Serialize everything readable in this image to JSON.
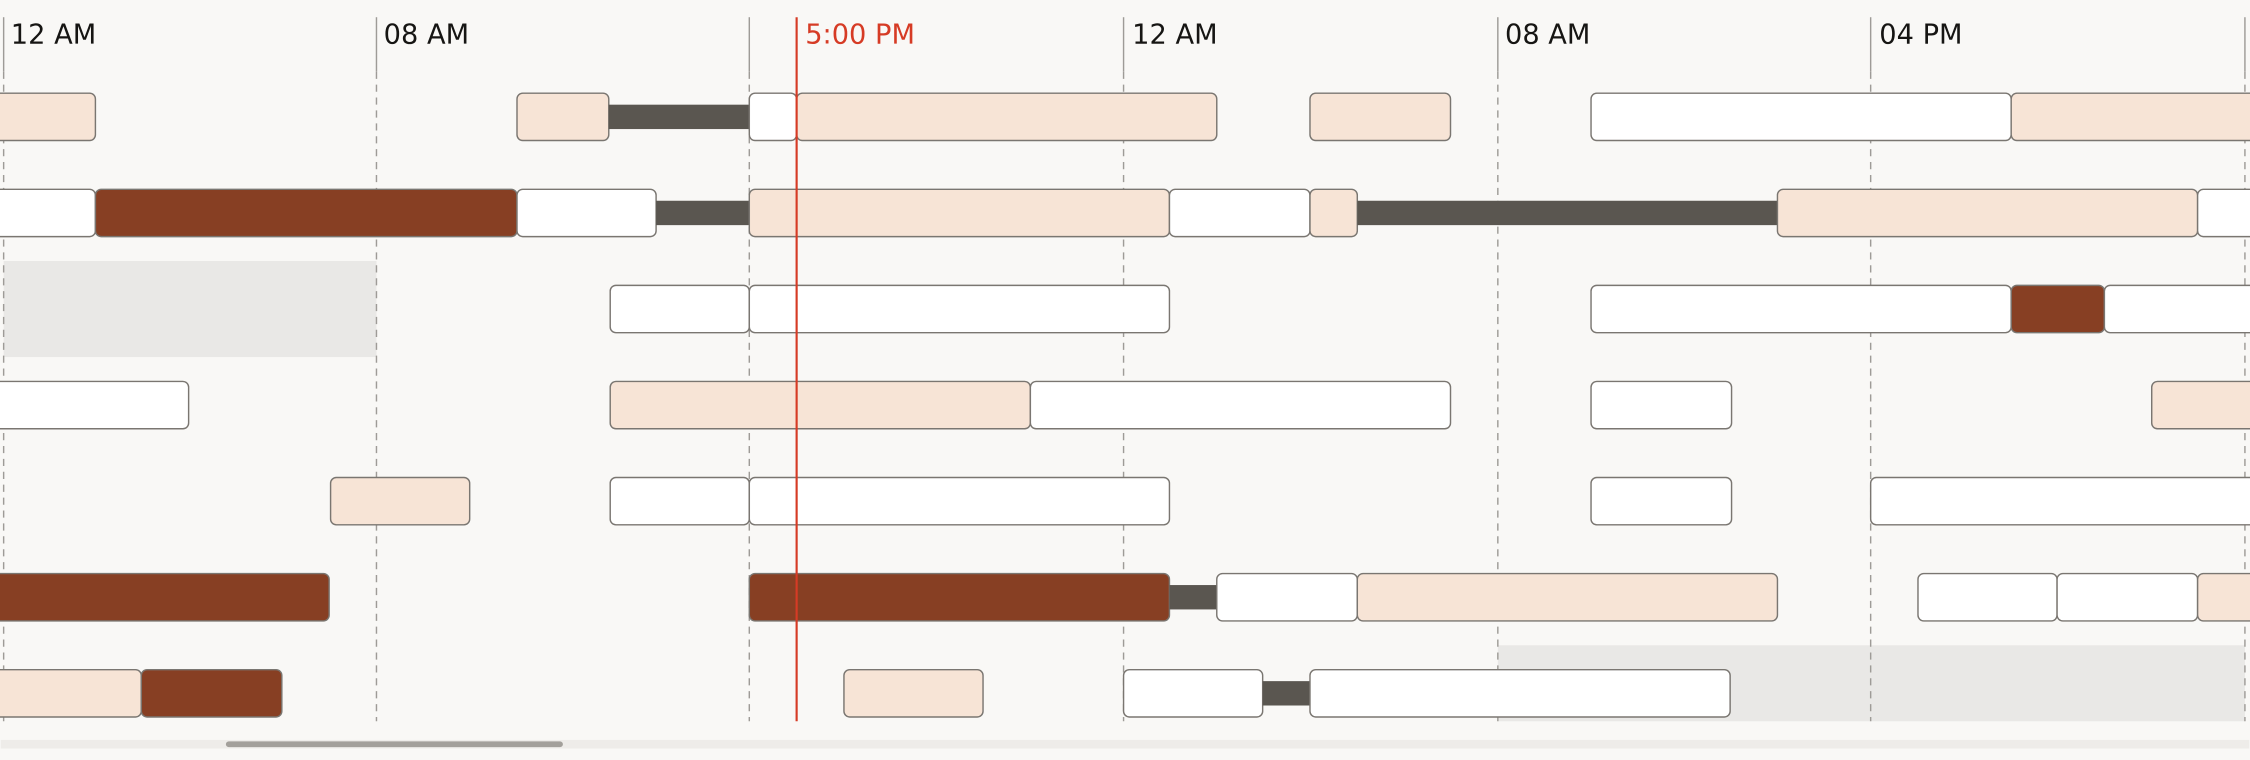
{
  "timeline": {
    "ticks": [
      "12 AM",
      "08 AM",
      "12 AM",
      "08 AM",
      "04 PM"
    ],
    "current_time": "5:00 PM"
  }
}
